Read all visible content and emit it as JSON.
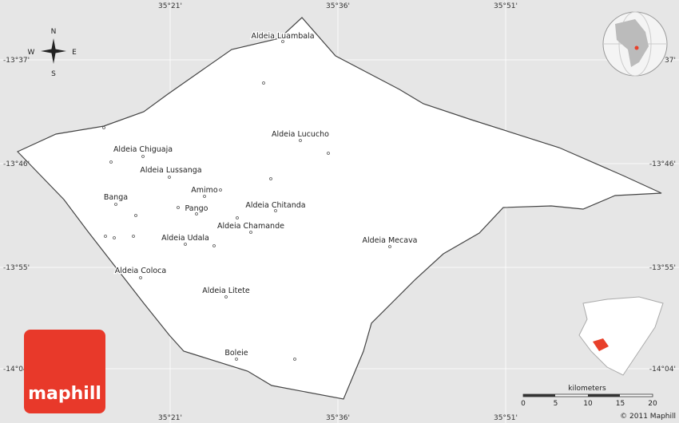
{
  "header": {
    "logo": "maphill",
    "copyright": "© 2011 Maphill"
  },
  "compass": {
    "n": "N",
    "e": "E",
    "s": "S",
    "w": "W"
  },
  "grid_labels": {
    "longitudes": [
      "35°21'",
      "35°36'",
      "35°51'"
    ],
    "latitudes": [
      "-13°37'",
      "-13°46'",
      "-13°55'",
      "-14°04'"
    ]
  },
  "places": [
    "Aldeia Luambala",
    "Aldeia Lucucho",
    "Aldeia Chiguaja",
    "Aldeia Lussanga",
    "Amimo",
    "Banga",
    "Aldeia Chitanda",
    "Pango",
    "Aldeia Chamande",
    "Aldeia Udala",
    "Aldeia Mecava",
    "Aldeia Coloca",
    "Aldeia Litete",
    "Boleie"
  ],
  "scale": {
    "unit": "kilometers",
    "ticks": [
      0,
      5,
      10,
      15,
      20
    ]
  }
}
